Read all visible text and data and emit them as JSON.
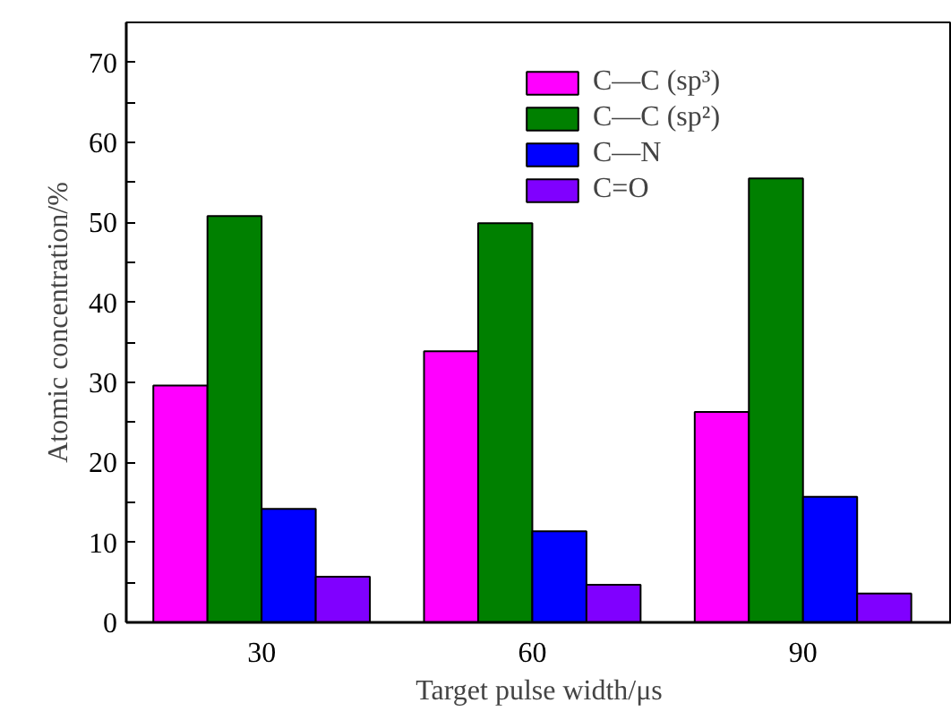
{
  "chart_data": {
    "type": "bar",
    "xlabel": "Target pulse width/μs",
    "ylabel": "Atomic concentration/%",
    "categories": [
      "30",
      "60",
      "90"
    ],
    "series": [
      {
        "name": "C—C (sp³)",
        "color": "#ff00ff",
        "values": [
          29.6,
          33.9,
          26.3
        ]
      },
      {
        "name": "C—C (sp²)",
        "color": "#008000",
        "values": [
          50.8,
          49.9,
          55.5
        ]
      },
      {
        "name": "C—N",
        "color": "#0000ff",
        "values": [
          14.2,
          11.4,
          15.7
        ]
      },
      {
        "name": "C=O",
        "color": "#8000ff",
        "values": [
          5.7,
          4.7,
          3.6
        ]
      }
    ],
    "ylim": [
      0,
      75
    ],
    "yticks": [
      0,
      {
        "value": 5,
        "label": null
      },
      10,
      {
        "value": 15,
        "label": null
      },
      20,
      {
        "value": 25,
        "label": null
      },
      30,
      {
        "value": 35,
        "label": null
      },
      40,
      {
        "value": 45,
        "label": null
      },
      50,
      {
        "value": 55,
        "label": null
      },
      60,
      {
        "value": 65,
        "label": null
      },
      70
    ],
    "grid": false,
    "legend": "top right"
  }
}
